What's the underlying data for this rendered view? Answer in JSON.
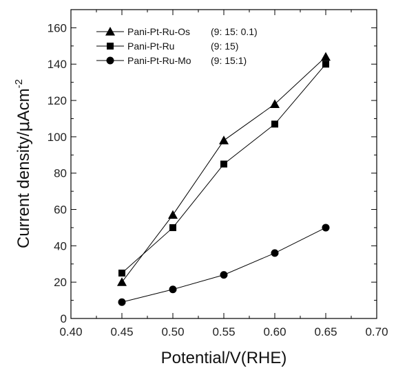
{
  "chart_data": {
    "type": "line",
    "xlabel": "Potential/V(RHE)",
    "ylabel_main": "Current density/",
    "ylabel_mu": "μ",
    "ylabel_unit": "Acm",
    "ylabel_sup": "-2",
    "xlim": [
      0.4,
      0.7
    ],
    "ylim": [
      0,
      170
    ],
    "xticks": [
      "0.40",
      "0.45",
      "0.50",
      "0.55",
      "0.60",
      "0.65",
      "0.70"
    ],
    "yticks": [
      "0",
      "20",
      "40",
      "60",
      "80",
      "100",
      "120",
      "140",
      "160"
    ],
    "x": [
      0.45,
      0.5,
      0.55,
      0.6,
      0.65
    ],
    "series": [
      {
        "name": "Pani-Pt-Ru-Os",
        "ratio": "(9: 15: 0.1)",
        "marker": "triangle",
        "values": [
          20,
          57,
          98,
          118,
          144
        ]
      },
      {
        "name": "Pani-Pt-Ru",
        "ratio": "(9: 15)",
        "marker": "square",
        "values": [
          25,
          50,
          85,
          107,
          140
        ]
      },
      {
        "name": "Pani-Pt-Ru-Mo",
        "ratio": "(9: 15:1)",
        "marker": "circle",
        "values": [
          9,
          16,
          24,
          36,
          50
        ]
      }
    ],
    "grid": false,
    "legend_position": "top-left",
    "line_color": "#000000"
  }
}
